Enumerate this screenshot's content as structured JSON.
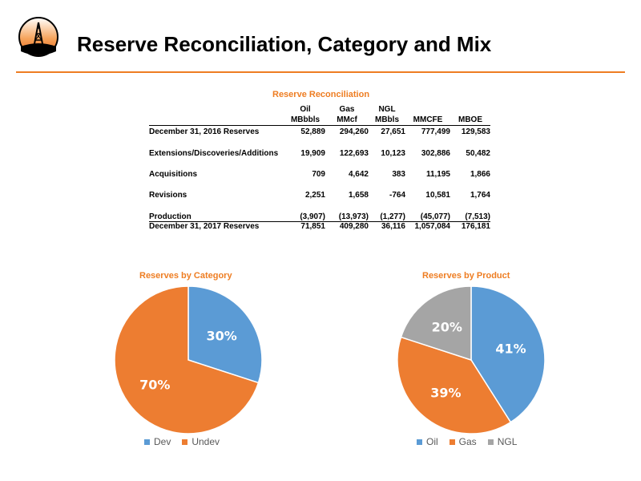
{
  "header": {
    "title": "Reserve Reconciliation, Category and Mix",
    "logo_icon": "oil-derrick-logo-icon"
  },
  "table": {
    "caption": "Reserve Reconciliation",
    "col_headers_top": [
      "Oil",
      "Gas",
      "NGL",
      "",
      ""
    ],
    "col_headers_bottom": [
      "MBbbls",
      "MMcf",
      "MBbls",
      "MMCFE",
      "MBOE"
    ],
    "rows": [
      {
        "label": "December 31, 2016 Reserves",
        "values": [
          "52,889",
          "294,260",
          "27,651",
          "777,499",
          "129,583"
        ]
      },
      {
        "label": "Extensions/Discoveries/Additions",
        "values": [
          "19,909",
          "122,693",
          "10,123",
          "302,886",
          "50,482"
        ]
      },
      {
        "label": "Acquisitions",
        "values": [
          "709",
          "4,642",
          "383",
          "11,195",
          "1,866"
        ]
      },
      {
        "label": "Revisions",
        "values": [
          "2,251",
          "1,658",
          "-764",
          "10,581",
          "1,764"
        ]
      },
      {
        "label": "Production",
        "values": [
          "(3,907)",
          "(13,973)",
          "(1,277)",
          "(45,077)",
          "(7,513)"
        ]
      },
      {
        "label": "December 31, 2017 Reserves",
        "values": [
          "71,851",
          "409,280",
          "36,116",
          "1,057,084",
          "176,181"
        ]
      }
    ]
  },
  "colors": {
    "accent": "#ee7d22",
    "blue": "#5b9bd5",
    "orange": "#ed7d31",
    "gray": "#a5a5a5"
  },
  "chart_data": [
    {
      "type": "pie",
      "title": "Reserves by Category",
      "slices": [
        {
          "name": "Dev",
          "value": 30,
          "label": "30%",
          "color": "#5b9bd5"
        },
        {
          "name": "Undev",
          "value": 70,
          "label": "70%",
          "color": "#ed7d31"
        }
      ],
      "legend": "bottom"
    },
    {
      "type": "pie",
      "title": "Reserves by Product",
      "slices": [
        {
          "name": "Oil",
          "value": 41,
          "label": "41%",
          "color": "#5b9bd5"
        },
        {
          "name": "Gas",
          "value": 39,
          "label": "39%",
          "color": "#ed7d31"
        },
        {
          "name": "NGL",
          "value": 20,
          "label": "20%",
          "color": "#a5a5a5"
        }
      ],
      "legend": "bottom"
    }
  ]
}
